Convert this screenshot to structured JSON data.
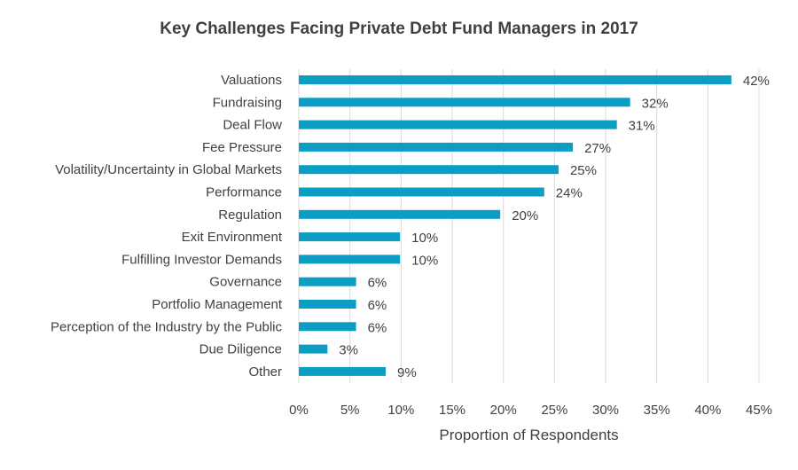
{
  "chart_data": {
    "type": "bar",
    "orientation": "horizontal",
    "title": "Key Challenges Facing Private Debt Fund Managers in 2017",
    "xlabel": "Proportion of Respondents",
    "ylabel": "",
    "categories": [
      "Valuations",
      "Fundraising",
      "Deal Flow",
      "Fee Pressure",
      "Volatility/Uncertainty in Global Markets",
      "Performance",
      "Regulation",
      "Exit Environment",
      "Fulfilling Investor Demands",
      "Governance",
      "Portfolio Management",
      "Perception of the Industry by the Public",
      "Due Diligence",
      "Other"
    ],
    "values": [
      42.3,
      32.4,
      31.1,
      26.8,
      25.4,
      24.0,
      19.7,
      9.9,
      9.9,
      5.6,
      5.6,
      5.6,
      2.8,
      8.5
    ],
    "value_labels": [
      "42%",
      "32%",
      "31%",
      "27%",
      "25%",
      "24%",
      "20%",
      "10%",
      "10%",
      "6%",
      "6%",
      "6%",
      "3%",
      "9%"
    ],
    "xlim": [
      0,
      45
    ],
    "xticks": [
      0,
      5,
      10,
      15,
      20,
      25,
      30,
      35,
      40,
      45
    ],
    "xtick_labels": [
      "0%",
      "5%",
      "10%",
      "15%",
      "20%",
      "25%",
      "30%",
      "35%",
      "40%",
      "45%"
    ],
    "grid": true,
    "legend": "none",
    "bar_color": "#0b9dc4"
  }
}
